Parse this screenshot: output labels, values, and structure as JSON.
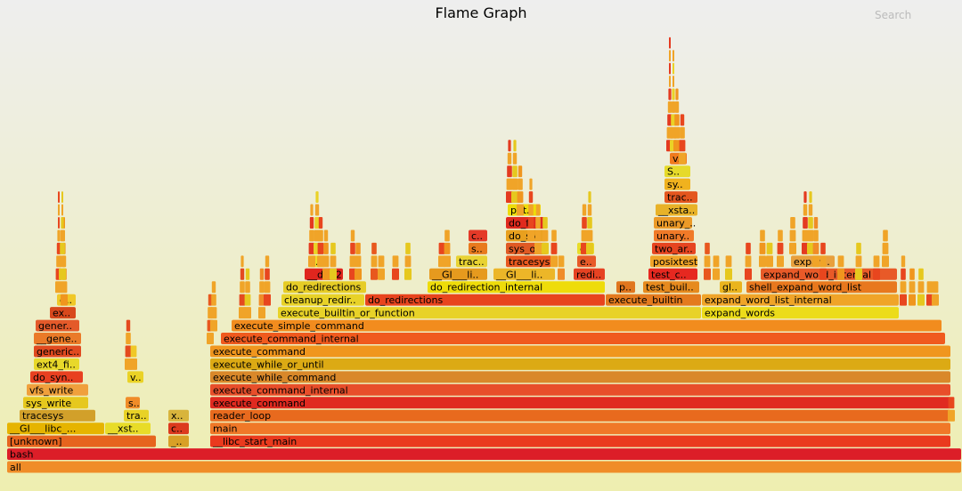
{
  "header": {
    "title": "Flame Graph",
    "search_label": "Search"
  },
  "chart_data": {
    "type": "flame",
    "title": "Flame Graph",
    "total_width": 1072,
    "frames": [
      {
        "name": "all",
        "depth": 0,
        "start": 0,
        "end": 1072,
        "color": "#f08c28"
      },
      {
        "name": "bash",
        "depth": 1,
        "start": 0,
        "end": 1072,
        "color": "#dc1e28"
      },
      {
        "name": "[unknown]",
        "depth": 2,
        "start": 0,
        "end": 168,
        "color": "#e6641e"
      },
      {
        "name": "__GI___libc_...",
        "depth": 3,
        "start": 0,
        "end": 110,
        "color": "#e6b400"
      },
      {
        "name": "__xst..",
        "depth": 3,
        "start": 110,
        "end": 162,
        "color": "#e8dc28"
      },
      {
        "name": "tracesys",
        "depth": 4,
        "start": 14,
        "end": 100,
        "color": "#d2a02a"
      },
      {
        "name": "sys_write",
        "depth": 5,
        "start": 18,
        "end": 92,
        "color": "#e6c81e"
      },
      {
        "name": "vfs_write",
        "depth": 6,
        "start": 22,
        "end": 92,
        "color": "#f0a03c"
      },
      {
        "name": "do_syn..",
        "depth": 7,
        "start": 26,
        "end": 86,
        "color": "#e84020"
      },
      {
        "name": "ext4_fi..",
        "depth": 8,
        "start": 30,
        "end": 82,
        "color": "#e8d82a"
      },
      {
        "name": "generic..",
        "depth": 9,
        "start": 30,
        "end": 84,
        "color": "#e04a20"
      },
      {
        "name": "__gene..",
        "depth": 10,
        "start": 30,
        "end": 84,
        "color": "#ea7a28"
      },
      {
        "name": "gener..",
        "depth": 11,
        "start": 32,
        "end": 82,
        "color": "#e45a2a"
      },
      {
        "name": "ex..",
        "depth": 12,
        "start": 48,
        "end": 78,
        "color": "#d8481c"
      },
      {
        "name": "g..",
        "depth": 13,
        "start": 56,
        "end": 78,
        "color": "#f0c828"
      },
      {
        "name": "s..",
        "depth": 5,
        "start": 133,
        "end": 150,
        "color": "#f08c28"
      },
      {
        "name": "v..",
        "depth": 7,
        "start": 135,
        "end": 154,
        "color": "#ead226"
      },
      {
        "name": "tra..",
        "depth": 4,
        "start": 131,
        "end": 160,
        "color": "#e8d226"
      },
      {
        "name": "_..",
        "depth": 2,
        "start": 181,
        "end": 205,
        "color": "#d8a026"
      },
      {
        "name": "c..",
        "depth": 3,
        "start": 181,
        "end": 205,
        "color": "#dc3a1e"
      },
      {
        "name": "x..",
        "depth": 4,
        "start": 181,
        "end": 205,
        "color": "#d8b43c"
      },
      {
        "name": "__libc_start_main",
        "depth": 2,
        "start": 228,
        "end": 1060,
        "color": "#ea3a1e"
      },
      {
        "name": "main",
        "depth": 3,
        "start": 228,
        "end": 1060,
        "color": "#f07828"
      },
      {
        "name": "reader_loop",
        "depth": 4,
        "start": 228,
        "end": 1060,
        "color": "#e86a1e"
      },
      {
        "name": "execute_command",
        "depth": 5,
        "start": 228,
        "end": 1060,
        "color": "#e02a20"
      },
      {
        "name": "execute_command_internal",
        "depth": 6,
        "start": 228,
        "end": 1060,
        "color": "#e84e2a"
      },
      {
        "name": "execute_while_command",
        "depth": 7,
        "start": 228,
        "end": 1060,
        "color": "#d9882a"
      },
      {
        "name": "execute_while_or_until",
        "depth": 8,
        "start": 228,
        "end": 1060,
        "color": "#dcaa14"
      },
      {
        "name": "execute_command",
        "depth": 9,
        "start": 228,
        "end": 1060,
        "color": "#f0961e"
      },
      {
        "name": "execute_command_internal",
        "depth": 10,
        "start": 240,
        "end": 1054,
        "color": "#f05a1e"
      },
      {
        "name": "execute_simple_command",
        "depth": 11,
        "start": 252,
        "end": 1050,
        "color": "#f28c1e"
      },
      {
        "name": "execute_builtin_or_function",
        "depth": 12,
        "start": 304,
        "end": 780,
        "color": "#e8d228"
      },
      {
        "name": "expand_words",
        "depth": 12,
        "start": 780,
        "end": 1002,
        "color": "#ecdc1a"
      },
      {
        "name": "cleanup_redir..",
        "depth": 13,
        "start": 308,
        "end": 402,
        "color": "#e8d228"
      },
      {
        "name": "do_redirections",
        "depth": 13,
        "start": 402,
        "end": 672,
        "color": "#e8441e"
      },
      {
        "name": "execute_builtin",
        "depth": 13,
        "start": 672,
        "end": 780,
        "color": "#e47a1e"
      },
      {
        "name": "expand_word_list_internal",
        "depth": 13,
        "start": 780,
        "end": 1002,
        "color": "#f0a428"
      },
      {
        "name": "do_redirections",
        "depth": 14,
        "start": 310,
        "end": 404,
        "color": "#e6cc26"
      },
      {
        "name": "do_redirection_internal",
        "depth": 14,
        "start": 472,
        "end": 672,
        "color": "#eedc0a"
      },
      {
        "name": "p..",
        "depth": 14,
        "start": 684,
        "end": 706,
        "color": "#e0761e"
      },
      {
        "name": "test_buil..",
        "depth": 14,
        "start": 714,
        "end": 778,
        "color": "#e68a1e"
      },
      {
        "name": "gl..",
        "depth": 14,
        "start": 800,
        "end": 826,
        "color": "#eab41e"
      },
      {
        "name": "shell_expand_word_list",
        "depth": 14,
        "start": 830,
        "end": 1000,
        "color": "#e8781e"
      },
      {
        "name": "__dup2",
        "depth": 15,
        "start": 334,
        "end": 378,
        "color": "#e0261e"
      },
      {
        "name": "__GI___li..",
        "depth": 15,
        "start": 474,
        "end": 540,
        "color": "#e69a1e"
      },
      {
        "name": "__GI___li..",
        "depth": 15,
        "start": 546,
        "end": 616,
        "color": "#ecb628"
      },
      {
        "name": "redi..",
        "depth": 15,
        "start": 636,
        "end": 672,
        "color": "#e64222"
      },
      {
        "name": "test_c..",
        "depth": 15,
        "start": 720,
        "end": 776,
        "color": "#e62820"
      },
      {
        "name": "expand_word_internal",
        "depth": 15,
        "start": 846,
        "end": 1000,
        "color": "#e85a28"
      },
      {
        "name": "i..",
        "depth": 16,
        "start": 340,
        "end": 358,
        "color": "#eedc28"
      },
      {
        "name": "trac..",
        "depth": 16,
        "start": 504,
        "end": 540,
        "color": "#e8d232"
      },
      {
        "name": "tracesys",
        "depth": 16,
        "start": 560,
        "end": 612,
        "color": "#e8581e"
      },
      {
        "name": "e..",
        "depth": 16,
        "start": 640,
        "end": 662,
        "color": "#e85a28"
      },
      {
        "name": "posixtest",
        "depth": 16,
        "start": 722,
        "end": 776,
        "color": "#f0a428"
      },
      {
        "name": "expan..",
        "depth": 16,
        "start": 880,
        "end": 930,
        "color": "#e8a03c"
      },
      {
        "name": "s..",
        "depth": 17,
        "start": 518,
        "end": 540,
        "color": "#e87a1e"
      },
      {
        "name": "sys_o..",
        "depth": 17,
        "start": 560,
        "end": 608,
        "color": "#e05a24"
      },
      {
        "name": "e..",
        "depth": 17,
        "start": 640,
        "end": 660,
        "color": "#e8dc28"
      },
      {
        "name": "two_ar..",
        "depth": 17,
        "start": 724,
        "end": 774,
        "color": "#e64520"
      },
      {
        "name": "c..",
        "depth": 18,
        "start": 518,
        "end": 540,
        "color": "#e43a28"
      },
      {
        "name": "do_sy..",
        "depth": 18,
        "start": 560,
        "end": 606,
        "color": "#e8a01e"
      },
      {
        "name": "unary..",
        "depth": 18,
        "start": 726,
        "end": 772,
        "color": "#f07a28"
      },
      {
        "name": "do_fi..",
        "depth": 19,
        "start": 560,
        "end": 604,
        "color": "#e02a1e"
      },
      {
        "name": "unary_..",
        "depth": 19,
        "start": 726,
        "end": 770,
        "color": "#ec9a28"
      },
      {
        "name": "pat..",
        "depth": 20,
        "start": 562,
        "end": 600,
        "color": "#eedc0a"
      },
      {
        "name": "__xsta..",
        "depth": 20,
        "start": 728,
        "end": 776,
        "color": "#e8b228"
      },
      {
        "name": "trac..",
        "depth": 21,
        "start": 738,
        "end": 776,
        "color": "#e4561e"
      },
      {
        "name": "sy..",
        "depth": 22,
        "start": 738,
        "end": 768,
        "color": "#f0b21e"
      },
      {
        "name": "S..",
        "depth": 23,
        "start": 738,
        "end": 768,
        "color": "#e6da2a"
      },
      {
        "name": "v..",
        "depth": 24,
        "start": 744,
        "end": 764,
        "color": "#f07a1e"
      }
    ]
  }
}
